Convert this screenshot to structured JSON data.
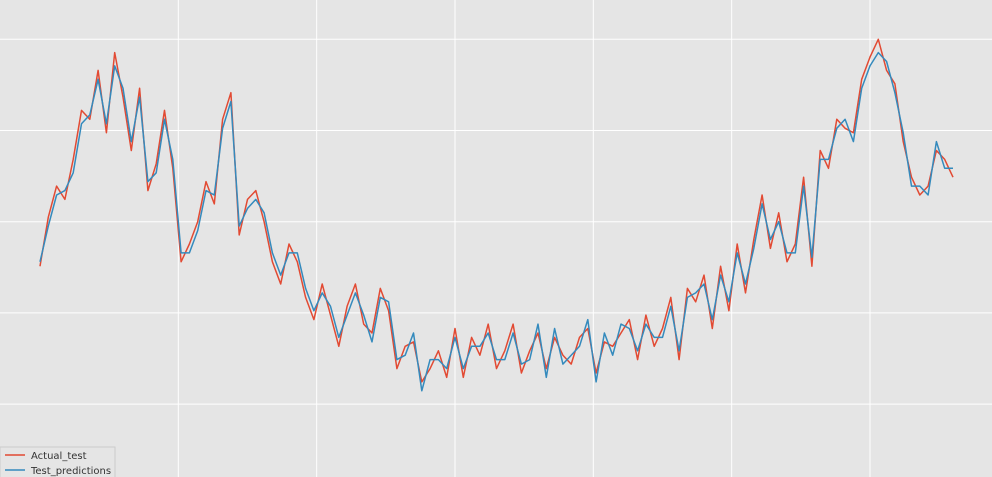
{
  "chart_data": {
    "type": "line",
    "title": "",
    "xlabel": "",
    "ylabel": "",
    "x_range": [
      0,
      330
    ],
    "y_range": [
      0,
      100
    ],
    "x_gridlines": [
      50,
      100,
      150,
      200,
      250,
      300
    ],
    "y_gridlines": [
      13,
      33.5,
      54,
      74.5,
      95
    ],
    "grid": true,
    "legend_placement": "lower-left",
    "series": [
      {
        "name": "Actual_test",
        "color": "#e24a33",
        "x": [
          0,
          3,
          6,
          9,
          12,
          15,
          18,
          21,
          24,
          27,
          30,
          33,
          36,
          39,
          42,
          45,
          48,
          51,
          54,
          57,
          60,
          63,
          66,
          69,
          72,
          75,
          78,
          81,
          84,
          87,
          90,
          93,
          96,
          99,
          102,
          105,
          108,
          111,
          114,
          117,
          120,
          123,
          126,
          129,
          132,
          135,
          138,
          141,
          144,
          147,
          150,
          153,
          156,
          159,
          162,
          165,
          168,
          171,
          174,
          177,
          180,
          183,
          186,
          189,
          192,
          195,
          198,
          201,
          204,
          207,
          210,
          213,
          216,
          219,
          222,
          225,
          228,
          231,
          234,
          237,
          240,
          243,
          246,
          249,
          252,
          255,
          258,
          261,
          264,
          267,
          270,
          273,
          276,
          279,
          282,
          285,
          288,
          291,
          294,
          297,
          300,
          303,
          306,
          309,
          312,
          315,
          318,
          321,
          324,
          327,
          330
        ],
        "values": [
          44,
          55,
          62,
          59,
          68,
          79,
          77,
          88,
          74,
          92,
          82,
          70,
          84,
          61,
          67,
          79,
          66,
          45,
          49,
          54,
          63,
          58,
          77,
          83,
          51,
          59,
          61,
          54,
          45,
          40,
          49,
          45,
          37,
          32,
          40,
          33,
          26,
          35,
          40,
          31,
          29,
          39,
          34,
          21,
          26,
          27,
          18,
          21,
          25,
          19,
          30,
          19,
          28,
          24,
          31,
          21,
          25,
          31,
          20,
          25,
          29,
          21,
          28,
          24,
          22,
          28,
          30,
          20,
          27,
          26,
          29,
          32,
          23,
          33,
          26,
          30,
          37,
          23,
          39,
          36,
          42,
          30,
          44,
          34,
          49,
          38,
          50,
          60,
          48,
          56,
          45,
          49,
          64,
          44,
          70,
          66,
          77,
          75,
          74,
          86,
          91,
          95,
          88,
          85,
          72,
          64,
          60,
          62,
          70,
          68,
          64
        ]
      },
      {
        "name": "Test_predictions",
        "color": "#348abd",
        "x": [
          0,
          3,
          6,
          9,
          12,
          15,
          18,
          21,
          24,
          27,
          30,
          33,
          36,
          39,
          42,
          45,
          48,
          51,
          54,
          57,
          60,
          63,
          66,
          69,
          72,
          75,
          78,
          81,
          84,
          87,
          90,
          93,
          96,
          99,
          102,
          105,
          108,
          111,
          114,
          117,
          120,
          123,
          126,
          129,
          132,
          135,
          138,
          141,
          144,
          147,
          150,
          153,
          156,
          159,
          162,
          165,
          168,
          171,
          174,
          177,
          180,
          183,
          186,
          189,
          192,
          195,
          198,
          201,
          204,
          207,
          210,
          213,
          216,
          219,
          222,
          225,
          228,
          231,
          234,
          237,
          240,
          243,
          246,
          249,
          252,
          255,
          258,
          261,
          264,
          267,
          270,
          273,
          276,
          279,
          282,
          285,
          288,
          291,
          294,
          297,
          300,
          303,
          306,
          309,
          312,
          315,
          318,
          321,
          324,
          327,
          330
        ],
        "values": [
          45,
          53,
          60,
          61,
          65,
          76,
          78,
          86,
          76,
          89,
          84,
          72,
          82,
          63,
          65,
          77,
          68,
          47,
          47,
          52,
          61,
          60,
          75,
          81,
          53,
          57,
          59,
          56,
          47,
          42,
          47,
          47,
          39,
          34,
          38,
          35,
          28,
          33,
          38,
          33,
          27,
          37,
          36,
          23,
          24,
          29,
          16,
          23,
          23,
          21,
          28,
          21,
          26,
          26,
          29,
          23,
          23,
          29,
          22,
          23,
          31,
          19,
          30,
          22,
          24,
          26,
          32,
          18,
          29,
          24,
          31,
          30,
          25,
          31,
          28,
          28,
          35,
          25,
          37,
          38,
          40,
          32,
          42,
          36,
          47,
          40,
          48,
          58,
          50,
          54,
          47,
          47,
          62,
          46,
          68,
          68,
          75,
          77,
          72,
          84,
          89,
          92,
          90,
          83,
          74,
          62,
          62,
          60,
          72,
          66,
          66
        ]
      }
    ]
  }
}
